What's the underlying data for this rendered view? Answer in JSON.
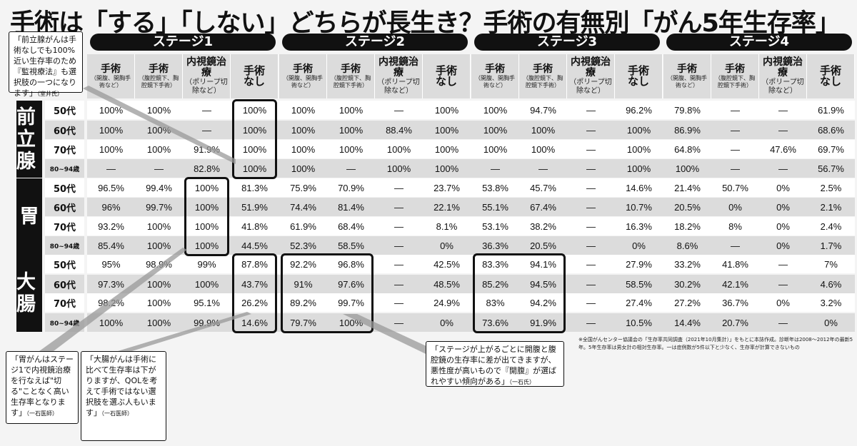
{
  "title": "手術は「する」「しない」どちらが長生き？手術の有無別「がん5年生存率」",
  "stages": [
    "ステージ1",
    "ステージ2",
    "ステージ3",
    "ステージ4"
  ],
  "treatments": [
    {
      "main": "手術",
      "sub": "（開腹、開胸手術など）"
    },
    {
      "main": "手術",
      "sub": "（腹腔鏡下、胸腔鏡下手術）"
    },
    {
      "main": "内視鏡治療",
      "sub": "（ポリープ切除など）"
    },
    {
      "main": "手術なし",
      "sub": ""
    }
  ],
  "organs": [
    "前立腺",
    "胃",
    "大腸"
  ],
  "ages": [
    "50代",
    "60代",
    "70代",
    "80~94歳"
  ],
  "chart_data": {
    "type": "table",
    "title": "手術は「する」「しない」どちらが長生き？手術の有無別「がん5年生存率」",
    "columns": [
      "手術（開腹、開胸手術など）",
      "手術（腹腔鏡下、胸腔鏡下手術）",
      "内視鏡治療（ポリープ切除など）",
      "手術なし"
    ],
    "rows": [
      {
        "organ": "前立腺",
        "age": "50代",
        "values": [
          [
            "100%",
            "100%",
            "—",
            "100%"
          ],
          [
            "100%",
            "100%",
            "—",
            "100%"
          ],
          [
            "100%",
            "94.7%",
            "—",
            "96.2%"
          ],
          [
            "79.8%",
            "—",
            "—",
            "61.9%"
          ]
        ]
      },
      {
        "organ": "前立腺",
        "age": "60代",
        "values": [
          [
            "100%",
            "100%",
            "—",
            "100%"
          ],
          [
            "100%",
            "100%",
            "88.4%",
            "100%"
          ],
          [
            "100%",
            "100%",
            "—",
            "100%"
          ],
          [
            "86.9%",
            "—",
            "—",
            "68.6%"
          ]
        ]
      },
      {
        "organ": "前立腺",
        "age": "70代",
        "values": [
          [
            "100%",
            "100%",
            "91.9%",
            "100%"
          ],
          [
            "100%",
            "100%",
            "100%",
            "100%"
          ],
          [
            "100%",
            "100%",
            "—",
            "100%"
          ],
          [
            "64.8%",
            "—",
            "47.6%",
            "69.7%"
          ]
        ]
      },
      {
        "organ": "前立腺",
        "age": "80~94歳",
        "values": [
          [
            "—",
            "—",
            "82.8%",
            "100%"
          ],
          [
            "100%",
            "—",
            "100%",
            "100%"
          ],
          [
            "—",
            "—",
            "—",
            "100%"
          ],
          [
            "100%",
            "—",
            "—",
            "56.7%"
          ]
        ]
      },
      {
        "organ": "胃",
        "age": "50代",
        "values": [
          [
            "96.5%",
            "99.4%",
            "100%",
            "81.3%"
          ],
          [
            "75.9%",
            "70.9%",
            "—",
            "23.7%"
          ],
          [
            "53.8%",
            "45.7%",
            "—",
            "14.6%"
          ],
          [
            "21.4%",
            "50.7%",
            "0%",
            "2.5%"
          ]
        ]
      },
      {
        "organ": "胃",
        "age": "60代",
        "values": [
          [
            "96%",
            "99.7%",
            "100%",
            "51.9%"
          ],
          [
            "74.4%",
            "81.4%",
            "—",
            "22.1%"
          ],
          [
            "55.1%",
            "67.4%",
            "—",
            "10.7%"
          ],
          [
            "20.5%",
            "0%",
            "0%",
            "2.1%"
          ]
        ]
      },
      {
        "organ": "胃",
        "age": "70代",
        "values": [
          [
            "93.2%",
            "100%",
            "100%",
            "41.8%"
          ],
          [
            "61.9%",
            "68.4%",
            "—",
            "8.1%"
          ],
          [
            "53.1%",
            "38.2%",
            "—",
            "16.3%"
          ],
          [
            "18.2%",
            "8%",
            "0%",
            "2.4%"
          ]
        ]
      },
      {
        "organ": "胃",
        "age": "80~94歳",
        "values": [
          [
            "85.4%",
            "100%",
            "100%",
            "44.5%"
          ],
          [
            "52.3%",
            "58.5%",
            "—",
            "0%"
          ],
          [
            "36.3%",
            "20.5%",
            "—",
            "0%"
          ],
          [
            "8.6%",
            "—",
            "0%",
            "1.7%"
          ]
        ]
      },
      {
        "organ": "大腸",
        "age": "50代",
        "values": [
          [
            "95%",
            "98.9%",
            "99%",
            "87.8%"
          ],
          [
            "92.2%",
            "96.8%",
            "—",
            "42.5%"
          ],
          [
            "83.3%",
            "94.1%",
            "—",
            "27.9%"
          ],
          [
            "33.2%",
            "41.8%",
            "—",
            "7%"
          ]
        ]
      },
      {
        "organ": "大腸",
        "age": "60代",
        "values": [
          [
            "97.3%",
            "100%",
            "100%",
            "43.7%"
          ],
          [
            "91%",
            "97.6%",
            "—",
            "48.5%"
          ],
          [
            "85.2%",
            "94.5%",
            "—",
            "58.5%"
          ],
          [
            "30.2%",
            "42.1%",
            "—",
            "4.6%"
          ]
        ]
      },
      {
        "organ": "大腸",
        "age": "70代",
        "values": [
          [
            "98.2%",
            "100%",
            "95.1%",
            "26.2%"
          ],
          [
            "89.2%",
            "99.7%",
            "—",
            "24.9%"
          ],
          [
            "83%",
            "94.2%",
            "—",
            "27.4%"
          ],
          [
            "27.2%",
            "36.7%",
            "0%",
            "3.2%"
          ]
        ]
      },
      {
        "organ": "大腸",
        "age": "80~94歳",
        "values": [
          [
            "100%",
            "100%",
            "99.9%",
            "14.6%"
          ],
          [
            "79.7%",
            "100%",
            "—",
            "0%"
          ],
          [
            "73.6%",
            "91.9%",
            "—",
            "10.5%"
          ],
          [
            "14.4%",
            "20.7%",
            "—",
            "0%"
          ]
        ]
      }
    ]
  },
  "notes": {
    "prostate": {
      "text": "「前立腺がんは手術なしでも100%近い生存率のため『監視療法』も選択肢の一つになります」",
      "src": "（室井氏）"
    },
    "stomach": {
      "text": "「胃がんはステージ1で内視鏡治療を行なえば\"切る\"ことなく高い生存率となります」",
      "src": "（一石医師）"
    },
    "colon": {
      "text": "「大腸がんは手術に比べて生存率は下がりますが、QOLを考えて手術ではない選択肢を選ぶ人もいます」",
      "src": "（一石医師）"
    },
    "stage": {
      "text": "「ステージが上がるごとに開腹と腹腔鏡の生存率に差が出てきますが、悪性度が高いもので『開腹』が選ばれやすい傾向がある」",
      "src": "（一石氏）"
    }
  },
  "footnote": "※全国がんセンター協議会の「生存率共同調査（2021年10月集計）」をもとに本誌作成。診断年は2008〜2012年の最新5年。5年生存率は男女計の相対生存率。一は症例数が5件以下と少なく、生存率が計算できないもの"
}
